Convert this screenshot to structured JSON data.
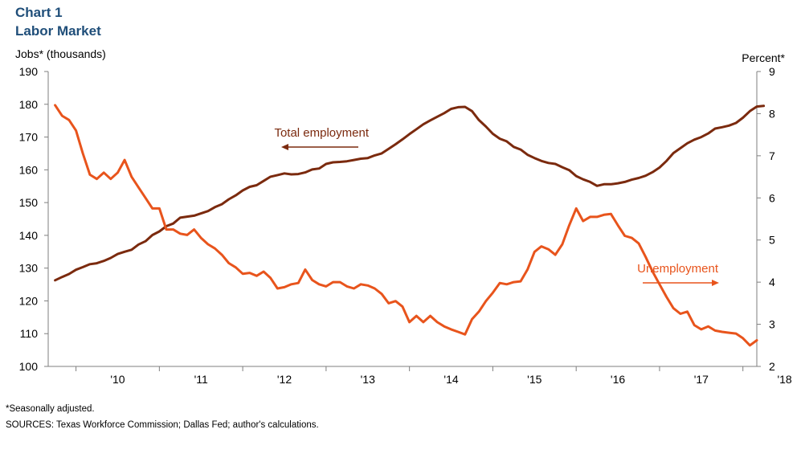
{
  "chart": {
    "title": "Chart 1",
    "subtitle": "Labor Market",
    "left_axis_label": "Jobs* (thousands)",
    "right_axis_label": "Percent*",
    "footnote": "*Seasonally adjusted.",
    "sources": "SOURCES: Texas Workforce Commission; Dallas Fed; author's calculations."
  },
  "chart_data": {
    "type": "line",
    "title": "Labor Market",
    "x_axis": {
      "tick_labels": [
        "'10",
        "'11",
        "'12",
        "'13",
        "'14",
        "'15",
        "'16",
        "'17",
        "'18"
      ],
      "range": [
        "2009-09",
        "2018-03"
      ]
    },
    "left_axis": {
      "label": "Jobs* (thousands)",
      "range": [
        100,
        190
      ],
      "ticks": [
        100,
        110,
        120,
        130,
        140,
        150,
        160,
        170,
        180,
        190
      ]
    },
    "right_axis": {
      "label": "Percent*",
      "range": [
        2,
        9
      ],
      "ticks": [
        2,
        3,
        4,
        5,
        6,
        7,
        8,
        9
      ]
    },
    "grid": false,
    "series": [
      {
        "name": "Total employment",
        "axis": "left",
        "color": "#7b2a0e",
        "annotation_arrow": "left",
        "points": [
          [
            "2009-10",
            126.3
          ],
          [
            "2009-11",
            127.3
          ],
          [
            "2009-12",
            128.2
          ],
          [
            "2010-01",
            129.5
          ],
          [
            "2010-02",
            130.3
          ],
          [
            "2010-03",
            131.2
          ],
          [
            "2010-04",
            131.5
          ],
          [
            "2010-05",
            132.2
          ],
          [
            "2010-06",
            133.1
          ],
          [
            "2010-07",
            134.3
          ],
          [
            "2010-08",
            135.0
          ],
          [
            "2010-09",
            135.6
          ],
          [
            "2010-10",
            137.2
          ],
          [
            "2010-11",
            138.2
          ],
          [
            "2010-12",
            140.1
          ],
          [
            "2011-01",
            141.2
          ],
          [
            "2011-02",
            142.8
          ],
          [
            "2011-03",
            143.6
          ],
          [
            "2011-04",
            145.4
          ],
          [
            "2011-05",
            145.7
          ],
          [
            "2011-06",
            146.0
          ],
          [
            "2011-07",
            146.7
          ],
          [
            "2011-08",
            147.4
          ],
          [
            "2011-09",
            148.6
          ],
          [
            "2011-10",
            149.5
          ],
          [
            "2011-11",
            151.0
          ],
          [
            "2011-12",
            152.2
          ],
          [
            "2012-01",
            153.7
          ],
          [
            "2012-02",
            154.8
          ],
          [
            "2012-03",
            155.3
          ],
          [
            "2012-04",
            156.6
          ],
          [
            "2012-05",
            157.9
          ],
          [
            "2012-06",
            158.4
          ],
          [
            "2012-07",
            158.9
          ],
          [
            "2012-08",
            158.6
          ],
          [
            "2012-09",
            158.7
          ],
          [
            "2012-10",
            159.2
          ],
          [
            "2012-11",
            160.1
          ],
          [
            "2012-12",
            160.4
          ],
          [
            "2013-01",
            161.8
          ],
          [
            "2013-02",
            162.3
          ],
          [
            "2013-03",
            162.4
          ],
          [
            "2013-04",
            162.6
          ],
          [
            "2013-05",
            163.0
          ],
          [
            "2013-06",
            163.4
          ],
          [
            "2013-07",
            163.6
          ],
          [
            "2013-08",
            164.4
          ],
          [
            "2013-09",
            165.0
          ],
          [
            "2013-10",
            166.4
          ],
          [
            "2013-11",
            167.8
          ],
          [
            "2013-12",
            169.3
          ],
          [
            "2014-01",
            170.9
          ],
          [
            "2014-02",
            172.4
          ],
          [
            "2014-03",
            173.9
          ],
          [
            "2014-04",
            175.1
          ],
          [
            "2014-05",
            176.2
          ],
          [
            "2014-06",
            177.3
          ],
          [
            "2014-07",
            178.6
          ],
          [
            "2014-08",
            179.1
          ],
          [
            "2014-09",
            179.2
          ],
          [
            "2014-10",
            177.9
          ],
          [
            "2014-11",
            175.2
          ],
          [
            "2014-12",
            173.2
          ],
          [
            "2015-01",
            171.0
          ],
          [
            "2015-02",
            169.5
          ],
          [
            "2015-03",
            168.7
          ],
          [
            "2015-04",
            167.0
          ],
          [
            "2015-05",
            166.2
          ],
          [
            "2015-06",
            164.6
          ],
          [
            "2015-07",
            163.6
          ],
          [
            "2015-08",
            162.7
          ],
          [
            "2015-09",
            162.1
          ],
          [
            "2015-10",
            161.8
          ],
          [
            "2015-11",
            160.8
          ],
          [
            "2015-12",
            159.9
          ],
          [
            "2016-01",
            158.1
          ],
          [
            "2016-02",
            157.1
          ],
          [
            "2016-03",
            156.3
          ],
          [
            "2016-04",
            155.1
          ],
          [
            "2016-05",
            155.6
          ],
          [
            "2016-06",
            155.6
          ],
          [
            "2016-07",
            155.9
          ],
          [
            "2016-08",
            156.3
          ],
          [
            "2016-09",
            157.0
          ],
          [
            "2016-10",
            157.5
          ],
          [
            "2016-11",
            158.2
          ],
          [
            "2016-12",
            159.3
          ],
          [
            "2017-01",
            160.7
          ],
          [
            "2017-02",
            162.7
          ],
          [
            "2017-03",
            165.1
          ],
          [
            "2017-04",
            166.6
          ],
          [
            "2017-05",
            168.1
          ],
          [
            "2017-06",
            169.2
          ],
          [
            "2017-07",
            170.0
          ],
          [
            "2017-08",
            171.1
          ],
          [
            "2017-09",
            172.6
          ],
          [
            "2017-10",
            173.0
          ],
          [
            "2017-11",
            173.5
          ],
          [
            "2017-12",
            174.3
          ],
          [
            "2018-01",
            175.9
          ],
          [
            "2018-02",
            177.9
          ],
          [
            "2018-03",
            179.3
          ],
          [
            "2018-04",
            179.5
          ]
        ]
      },
      {
        "name": "Unemployment",
        "axis": "right",
        "color": "#e8541c",
        "annotation_arrow": "right",
        "points": [
          [
            "2009-10",
            8.2
          ],
          [
            "2009-11",
            7.95
          ],
          [
            "2009-12",
            7.85
          ],
          [
            "2010-01",
            7.6
          ],
          [
            "2010-02",
            7.05
          ],
          [
            "2010-03",
            6.55
          ],
          [
            "2010-04",
            6.45
          ],
          [
            "2010-05",
            6.6
          ],
          [
            "2010-06",
            6.45
          ],
          [
            "2010-07",
            6.6
          ],
          [
            "2010-08",
            6.9
          ],
          [
            "2010-09",
            6.5
          ],
          [
            "2010-10",
            6.25
          ],
          [
            "2010-11",
            6.0
          ],
          [
            "2010-12",
            5.75
          ],
          [
            "2011-01",
            5.75
          ],
          [
            "2011-02",
            5.25
          ],
          [
            "2011-03",
            5.25
          ],
          [
            "2011-04",
            5.15
          ],
          [
            "2011-05",
            5.12
          ],
          [
            "2011-06",
            5.25
          ],
          [
            "2011-07",
            5.05
          ],
          [
            "2011-08",
            4.9
          ],
          [
            "2011-09",
            4.8
          ],
          [
            "2011-10",
            4.65
          ],
          [
            "2011-11",
            4.45
          ],
          [
            "2011-12",
            4.35
          ],
          [
            "2012-01",
            4.2
          ],
          [
            "2012-02",
            4.22
          ],
          [
            "2012-03",
            4.15
          ],
          [
            "2012-04",
            4.25
          ],
          [
            "2012-05",
            4.1
          ],
          [
            "2012-06",
            3.85
          ],
          [
            "2012-07",
            3.88
          ],
          [
            "2012-08",
            3.95
          ],
          [
            "2012-09",
            3.98
          ],
          [
            "2012-10",
            4.3
          ],
          [
            "2012-11",
            4.05
          ],
          [
            "2012-12",
            3.95
          ],
          [
            "2013-01",
            3.9
          ],
          [
            "2013-02",
            4.0
          ],
          [
            "2013-03",
            4.0
          ],
          [
            "2013-04",
            3.9
          ],
          [
            "2013-05",
            3.85
          ],
          [
            "2013-06",
            3.95
          ],
          [
            "2013-07",
            3.92
          ],
          [
            "2013-08",
            3.85
          ],
          [
            "2013-09",
            3.72
          ],
          [
            "2013-10",
            3.5
          ],
          [
            "2013-11",
            3.55
          ],
          [
            "2013-12",
            3.42
          ],
          [
            "2014-01",
            3.05
          ],
          [
            "2014-02",
            3.2
          ],
          [
            "2014-03",
            3.05
          ],
          [
            "2014-04",
            3.2
          ],
          [
            "2014-05",
            3.05
          ],
          [
            "2014-06",
            2.95
          ],
          [
            "2014-07",
            2.88
          ],
          [
            "2014-08",
            2.82
          ],
          [
            "2014-09",
            2.76
          ],
          [
            "2014-10",
            3.12
          ],
          [
            "2014-11",
            3.3
          ],
          [
            "2014-12",
            3.55
          ],
          [
            "2015-01",
            3.75
          ],
          [
            "2015-02",
            3.98
          ],
          [
            "2015-03",
            3.95
          ],
          [
            "2015-04",
            4.0
          ],
          [
            "2015-05",
            4.02
          ],
          [
            "2015-06",
            4.3
          ],
          [
            "2015-07",
            4.72
          ],
          [
            "2015-08",
            4.85
          ],
          [
            "2015-09",
            4.78
          ],
          [
            "2015-10",
            4.65
          ],
          [
            "2015-11",
            4.9
          ],
          [
            "2015-12",
            5.35
          ],
          [
            "2016-01",
            5.75
          ],
          [
            "2016-02",
            5.45
          ],
          [
            "2016-03",
            5.55
          ],
          [
            "2016-04",
            5.55
          ],
          [
            "2016-05",
            5.6
          ],
          [
            "2016-06",
            5.62
          ],
          [
            "2016-07",
            5.35
          ],
          [
            "2016-08",
            5.1
          ],
          [
            "2016-09",
            5.05
          ],
          [
            "2016-10",
            4.92
          ],
          [
            "2016-11",
            4.6
          ],
          [
            "2016-12",
            4.25
          ],
          [
            "2017-01",
            3.95
          ],
          [
            "2017-02",
            3.65
          ],
          [
            "2017-03",
            3.38
          ],
          [
            "2017-04",
            3.25
          ],
          [
            "2017-05",
            3.3
          ],
          [
            "2017-06",
            2.98
          ],
          [
            "2017-07",
            2.88
          ],
          [
            "2017-08",
            2.95
          ],
          [
            "2017-09",
            2.85
          ],
          [
            "2017-10",
            2.82
          ],
          [
            "2017-11",
            2.8
          ],
          [
            "2017-12",
            2.78
          ],
          [
            "2018-01",
            2.67
          ],
          [
            "2018-02",
            2.5
          ],
          [
            "2018-03",
            2.62
          ]
        ]
      }
    ]
  }
}
